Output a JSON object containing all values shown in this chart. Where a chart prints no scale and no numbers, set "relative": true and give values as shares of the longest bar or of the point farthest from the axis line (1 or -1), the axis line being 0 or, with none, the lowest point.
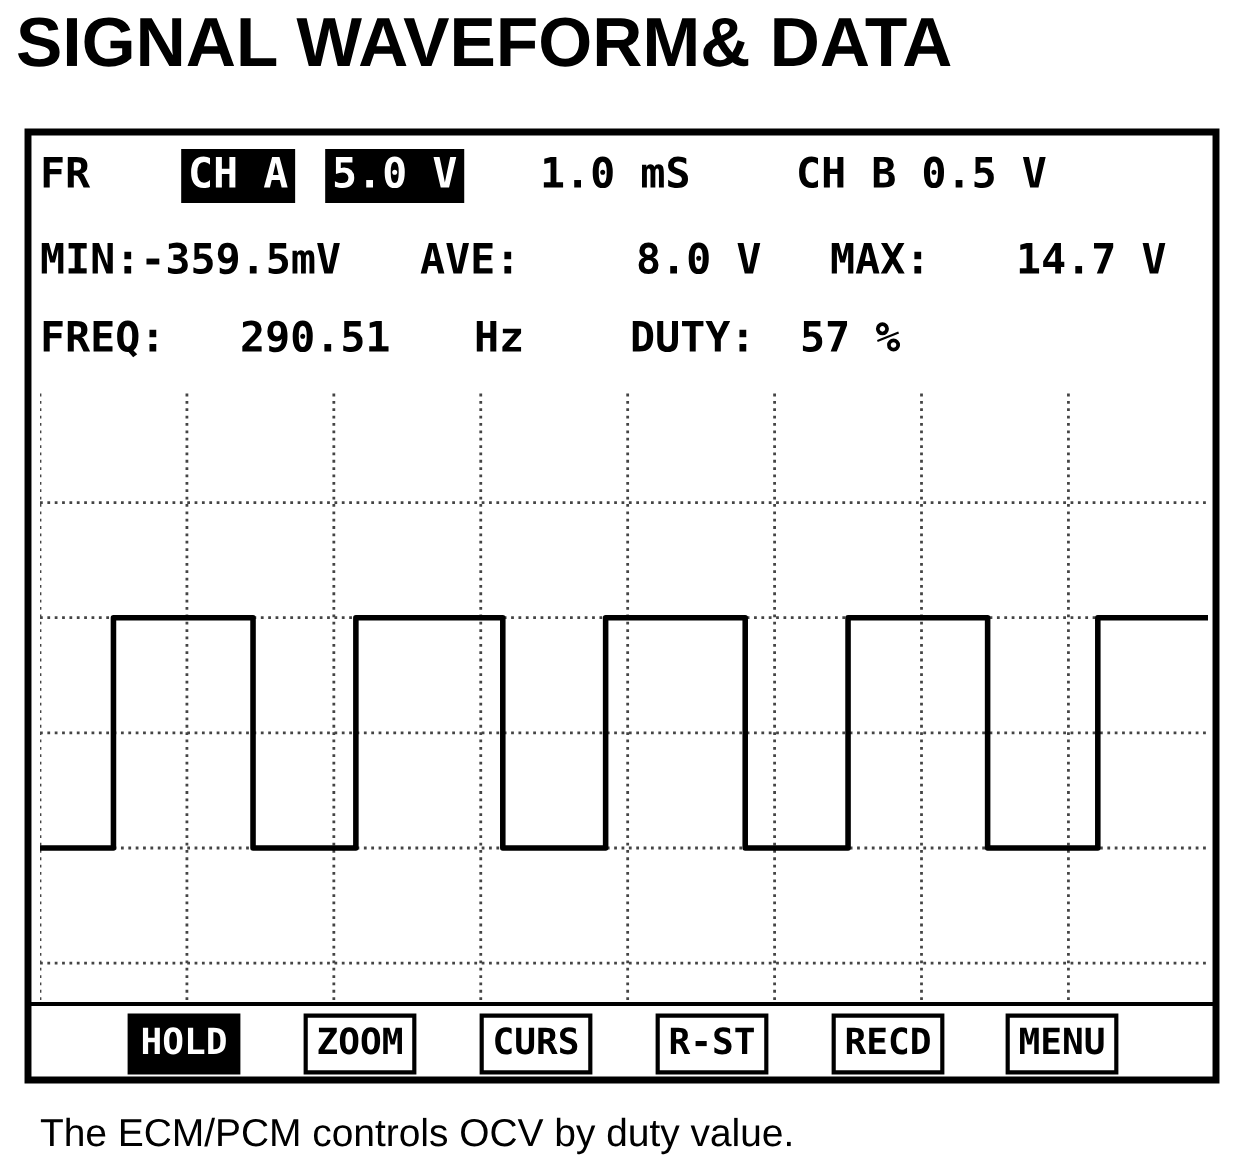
{
  "chart_data": {
    "type": "step",
    "title": "SIGNAL WAVEFORM& DATA",
    "relative": true,
    "categories": [
      null,
      null,
      null,
      null,
      null,
      null,
      null,
      null,
      null,
      null,
      null,
      null,
      null,
      null,
      null,
      null,
      null,
      null,
      null,
      null,
      null,
      null,
      null,
      null,
      null,
      null,
      null,
      null,
      null,
      null,
      null,
      null,
      null,
      null,
      null,
      null,
      null,
      null,
      null,
      null,
      null,
      null,
      null,
      null,
      null,
      null,
      null,
      null,
      null,
      null,
      null,
      null,
      null,
      null,
      null,
      null,
      null,
      null,
      null,
      null,
      null,
      null,
      null,
      null,
      null,
      null,
      null,
      null,
      null,
      null,
      null,
      null,
      null,
      null,
      null,
      null,
      null,
      null,
      null,
      null,
      null,
      null,
      null,
      null,
      null,
      null,
      null,
      null,
      null,
      null,
      null,
      null,
      null,
      null,
      null,
      null,
      null,
      null,
      null,
      null,
      null,
      null,
      null,
      null,
      null,
      null,
      null,
      null,
      null,
      null,
      null,
      null,
      null,
      null,
      null,
      null,
      null,
      null,
      null,
      null,
      null,
      null,
      null,
      null,
      null,
      null,
      null,
      null,
      null,
      null,
      null,
      null,
      null,
      null,
      null,
      null,
      null,
      null,
      null,
      null,
      null,
      null,
      null,
      null,
      null,
      null,
      null,
      null,
      null,
      null,
      null,
      null,
      null,
      null,
      null,
      null,
      null,
      null,
      null,
      null
    ],
    "series": [
      {
        "color": "#000000",
        "values": [
          0,
          0,
          0,
          0,
          0,
          0,
          0,
          0,
          0,
          0,
          1,
          1,
          1,
          1,
          1,
          1,
          1,
          1,
          1,
          1,
          1,
          1,
          1,
          1,
          1,
          1,
          1,
          1,
          1,
          0,
          0,
          0,
          0,
          0,
          0,
          0,
          0,
          0,
          0,
          0,
          0,
          0,
          0,
          1,
          1,
          1,
          1,
          1,
          1,
          1,
          1,
          1,
          1,
          1,
          1,
          1,
          1,
          1,
          1,
          1,
          1,
          1,
          1,
          0,
          0,
          0,
          0,
          0,
          0,
          0,
          0,
          0,
          0,
          0,
          0,
          0,
          0,
          1,
          1,
          1,
          1,
          1,
          1,
          1,
          1,
          1,
          1,
          1,
          1,
          1,
          1,
          1,
          1,
          1,
          1,
          1,
          0,
          0,
          0,
          0,
          0,
          0,
          0,
          0,
          0,
          0,
          0,
          0,
          0,
          0,
          1,
          1,
          1,
          1,
          1,
          1,
          1,
          1,
          1,
          1,
          1,
          1,
          1,
          1,
          1,
          1,
          1,
          1,
          1,
          0,
          0,
          0,
          0,
          0,
          0,
          0,
          0,
          0,
          0,
          0,
          0,
          0,
          0,
          0,
          1,
          1,
          1,
          1,
          1,
          1,
          1,
          1,
          1,
          1,
          1,
          1,
          1,
          1,
          1,
          1
        ]
      }
    ],
    "grid": true,
    "line_style": "solid",
    "marker": "none",
    "tick_labels": false,
    "annotations": [
      "FR",
      "CH A",
      "5.0 V",
      "1.0 mS",
      "CH B 0.5 V",
      "MIN:-359.5mV",
      "AVE:",
      "8.0 V",
      "MAX:",
      "14.7 V",
      "FREQ:",
      "290.51",
      "Hz",
      "DUTY:",
      "57 %",
      "HOLD",
      "ZOOM",
      "CURS",
      "R-ST",
      "RECD",
      "MENU",
      "The ECM/PCM controls OCV by duty value."
    ]
  }
}
